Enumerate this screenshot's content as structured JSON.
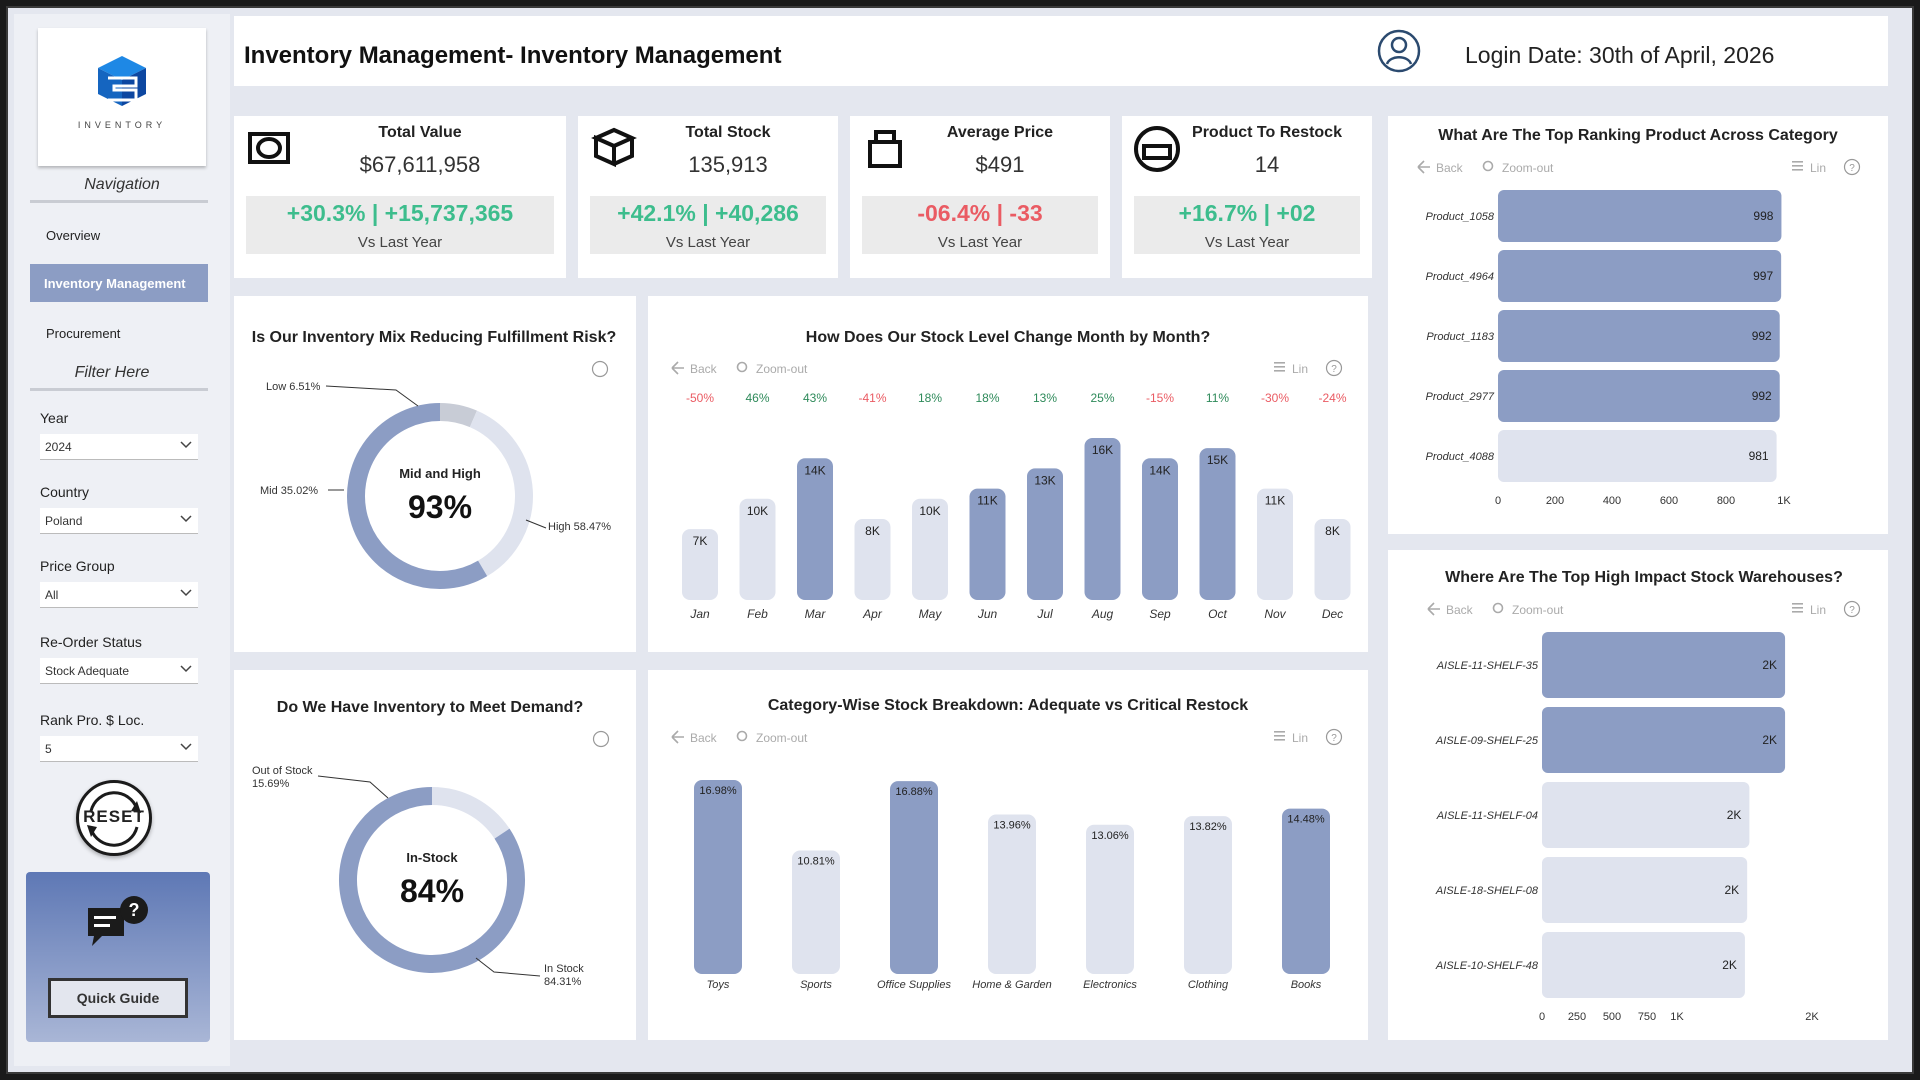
{
  "header": {
    "title": "Inventory Management- Inventory Management",
    "login": "Login Date: 30th of April, 2026"
  },
  "sidebar": {
    "logo_text": "INVENTORY",
    "nav_title": "Navigation",
    "nav": [
      "Overview",
      "Inventory Management",
      "Procurement"
    ],
    "filter_title": "Filter Here",
    "filters": [
      {
        "label": "Year",
        "value": "2024"
      },
      {
        "label": "Country",
        "value": "Poland"
      },
      {
        "label": "Price Group",
        "value": "All"
      },
      {
        "label": "Re-Order Status",
        "value": "Stock Adequate"
      },
      {
        "label": "Rank Pro. $ Loc.",
        "value": "5"
      }
    ],
    "reset": "RESET",
    "quick_guide": "Quick Guide"
  },
  "kpis": [
    {
      "name": "Total Value",
      "value": "$67,611,958",
      "delta": "+30.3% | +15,737,365",
      "sub": "Vs Last Year",
      "positive": true
    },
    {
      "name": "Total Stock",
      "value": "135,913",
      "delta": "+42.1% | +40,286",
      "sub": "Vs Last Year",
      "positive": true
    },
    {
      "name": "Average Price",
      "value": "$491",
      "delta": "-06.4% | -33",
      "sub": "Vs Last Year",
      "positive": false
    },
    {
      "name": "Product To Restock",
      "value": "14",
      "delta": "+16.7% | +02",
      "sub": "Vs Last Year",
      "positive": true
    }
  ],
  "toolbar": {
    "back": "Back",
    "zoom": "Zoom-out",
    "lin": "Lin"
  },
  "colors": {
    "dark": "#8c9dc4",
    "light": "#dfe3ee",
    "pos": "#3dbd8d",
    "neg": "#ea5b63",
    "grey": "#c8ccd6"
  },
  "chart_data": [
    {
      "id": "mix",
      "type": "pie",
      "title": "Is Our Inventory Mix Reducing Fulfillment Risk?",
      "center_label": "Mid and High",
      "center_value": "93%",
      "slices": [
        {
          "name": "Low",
          "value": 6.51,
          "label": "Low 6.51%"
        },
        {
          "name": "Mid",
          "value": 35.02,
          "label": "Mid 35.02%"
        },
        {
          "name": "High",
          "value": 58.47,
          "label": "High 58.47%"
        }
      ]
    },
    {
      "id": "demand",
      "type": "pie",
      "title": "Do We Have Inventory to Meet Demand?",
      "center_label": "In-Stock",
      "center_value": "84%",
      "slices": [
        {
          "name": "Out of Stock",
          "value": 15.69,
          "label": [
            "Out of Stock",
            "15.69%"
          ]
        },
        {
          "name": "In Stock",
          "value": 84.31,
          "label": [
            "In Stock",
            "84.31%"
          ]
        }
      ]
    },
    {
      "id": "monthly",
      "type": "bar",
      "title": "How Does Our Stock Level Change Month by Month?",
      "categories": [
        "Jan",
        "Feb",
        "Mar",
        "Apr",
        "May",
        "Jun",
        "Jul",
        "Aug",
        "Sep",
        "Oct",
        "Nov",
        "Dec"
      ],
      "values": [
        7000,
        10000,
        14000,
        8000,
        10000,
        11000,
        13000,
        16000,
        14000,
        15000,
        11000,
        8000
      ],
      "data_labels": [
        "7K",
        "10K",
        "14K",
        "8K",
        "10K",
        "11K",
        "13K",
        "16K",
        "14K",
        "15K",
        "11K",
        "8K"
      ],
      "changes": [
        "-50%",
        "46%",
        "43%",
        "-41%",
        "18%",
        "18%",
        "13%",
        "25%",
        "-15%",
        "11%",
        "-30%",
        "-24%"
      ],
      "highlight": [
        false,
        false,
        true,
        false,
        false,
        true,
        true,
        true,
        true,
        true,
        false,
        false
      ]
    },
    {
      "id": "category",
      "type": "bar",
      "title": "Category-Wise Stock Breakdown: Adequate vs Critical Restock",
      "categories": [
        "Toys",
        "Sports",
        "Office Supplies",
        "Home & Garden",
        "Electronics",
        "Clothing",
        "Books"
      ],
      "values": [
        16.98,
        10.81,
        16.88,
        13.96,
        13.06,
        13.82,
        14.48
      ],
      "data_labels": [
        "16.98%",
        "10.81%",
        "16.88%",
        "13.96%",
        "13.06%",
        "13.82%",
        "14.48%"
      ],
      "highlight": [
        true,
        false,
        true,
        false,
        false,
        false,
        true
      ]
    },
    {
      "id": "products",
      "type": "bar",
      "orientation": "horizontal",
      "title": "What Are The Top Ranking Product Across Category",
      "categories": [
        "Product_1058",
        "Product_4964",
        "Product_1183",
        "Product_2977",
        "Product_4088"
      ],
      "values": [
        998,
        997,
        992,
        992,
        981
      ],
      "data_labels": [
        "998",
        "997",
        "992",
        "992",
        "981"
      ],
      "highlight": [
        true,
        true,
        true,
        true,
        false
      ],
      "xticks": [
        "0",
        "200",
        "400",
        "600",
        "800",
        "1K"
      ],
      "xlim": [
        0,
        1000
      ]
    },
    {
      "id": "warehouses",
      "type": "bar",
      "orientation": "horizontal",
      "title": "Where Are The Top High Impact Stock Warehouses?",
      "categories": [
        "AISLE-11-SHELF-35",
        "AISLE-09-SHELF-25",
        "AISLE-11-SHELF-04",
        "AISLE-18-SHELF-08",
        "AISLE-10-SHELF-48"
      ],
      "values": [
        2180,
        2180,
        1860,
        1840,
        1820
      ],
      "data_labels": [
        "2K",
        "2K",
        "2K",
        "2K",
        "2K"
      ],
      "highlight": [
        true,
        true,
        false,
        false,
        false
      ],
      "xticks": [
        "0",
        "250",
        "500",
        "750",
        "1K",
        "2K"
      ]
    }
  ]
}
